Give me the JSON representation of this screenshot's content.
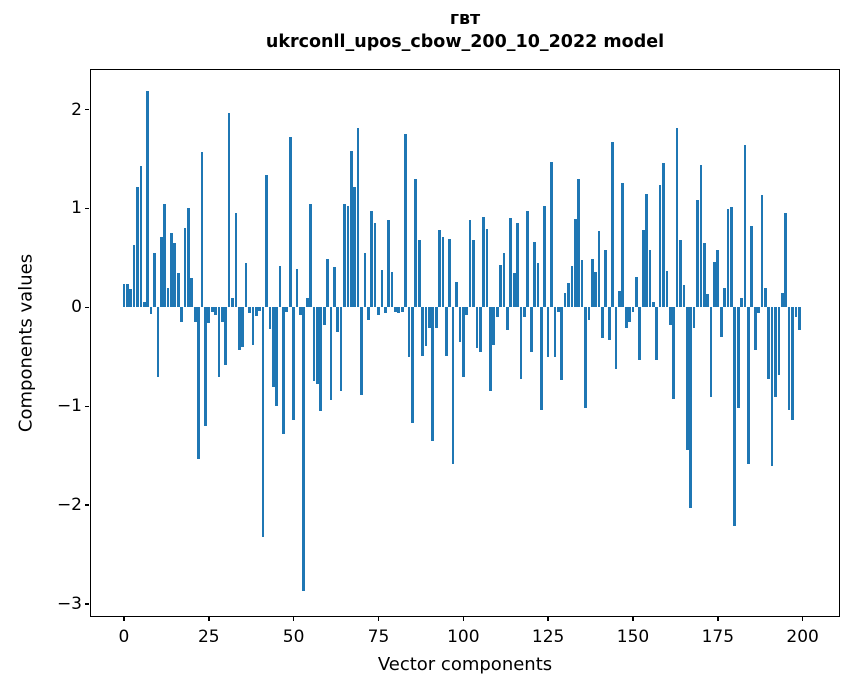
{
  "figure": {
    "title_line1": "гвт",
    "title_line2": "ukrconll_upos_cbow_200_10_2022 model"
  },
  "chart_data": {
    "type": "bar",
    "title": "гвт",
    "subtitle": "ukrconll_upos_cbow_200_10_2022 model",
    "xlabel": "Vector components",
    "ylabel": "Components values",
    "bar_color": "#1f77b4",
    "grid": false,
    "legend": "none",
    "xlim": [
      -10,
      211
    ],
    "ylim": [
      -3.13,
      2.41
    ],
    "x_ticks": [
      0,
      25,
      50,
      75,
      100,
      125,
      150,
      175,
      200
    ],
    "x_tick_labels": [
      "0",
      "25",
      "50",
      "75",
      "100",
      "125",
      "150",
      "175",
      "200"
    ],
    "y_ticks": [
      2,
      1,
      0,
      -1,
      -2,
      -3
    ],
    "y_tick_labels": [
      "2",
      "1",
      "0",
      "−1",
      "−2",
      "−3"
    ],
    "x_start": 0,
    "bar_width_units": 0.8,
    "values": [
      0.24,
      0.24,
      0.19,
      0.63,
      1.22,
      1.43,
      0.05,
      2.19,
      -0.07,
      0.55,
      -0.7,
      0.71,
      1.05,
      0.2,
      0.75,
      0.65,
      0.35,
      -0.15,
      0.8,
      1.0,
      0.3,
      -0.15,
      -1.53,
      1.57,
      -1.2,
      -0.16,
      -0.05,
      -0.08,
      -0.7,
      -0.15,
      -0.58,
      1.97,
      0.1,
      0.95,
      -0.43,
      -0.4,
      0.45,
      -0.06,
      -0.38,
      -0.09,
      -0.04,
      -2.32,
      1.34,
      -0.22,
      -0.8,
      -1.0,
      0.42,
      -1.28,
      -0.05,
      1.72,
      -1.14,
      0.39,
      -0.08,
      -2.87,
      0.1,
      1.05,
      -0.74,
      -0.77,
      -1.05,
      -0.18,
      0.49,
      -0.94,
      0.41,
      -0.25,
      -0.85,
      1.05,
      1.02,
      1.58,
      1.22,
      1.81,
      -0.89,
      0.55,
      -0.13,
      0.97,
      0.85,
      -0.08,
      0.38,
      -0.06,
      0.88,
      0.36,
      -0.05,
      -0.06,
      -0.05,
      1.75,
      -0.5,
      -1.17,
      1.3,
      0.68,
      -0.49,
      -0.39,
      -0.21,
      -1.35,
      -0.21,
      0.78,
      0.71,
      -0.49,
      0.69,
      -1.58,
      0.26,
      -0.35,
      -0.7,
      -0.08,
      0.88,
      0.68,
      -0.41,
      -0.45,
      0.91,
      0.79,
      -0.85,
      -0.38,
      -0.1,
      0.43,
      0.55,
      -0.23,
      0.9,
      0.35,
      0.85,
      -0.72,
      -0.1,
      0.97,
      -0.45,
      0.66,
      0.45,
      -1.04,
      1.03,
      -0.5,
      1.47,
      -0.5,
      -0.05,
      -0.73,
      0.15,
      0.25,
      0.42,
      0.89,
      1.3,
      0.48,
      -1.02,
      -0.13,
      0.49,
      0.36,
      0.77,
      -0.31,
      0.58,
      -0.33,
      1.67,
      -0.62,
      0.17,
      1.26,
      -0.21,
      -0.15,
      -0.05,
      0.31,
      -0.53,
      0.78,
      1.15,
      0.58,
      0.05,
      -0.53,
      1.24,
      1.46,
      0.37,
      -0.18,
      -0.93,
      1.81,
      0.68,
      0.23,
      -1.44,
      -2.03,
      -0.21,
      1.09,
      1.44,
      0.65,
      0.14,
      -0.91,
      0.46,
      0.58,
      -0.3,
      0.2,
      0.99,
      1.01,
      -2.21,
      -1.02,
      0.1,
      1.64,
      -1.58,
      0.82,
      -0.43,
      -0.06,
      1.14,
      0.2,
      -0.72,
      -1.6,
      -0.91,
      -0.68,
      0.15,
      0.95,
      -1.04,
      -1.14,
      -0.1,
      -0.23
    ]
  }
}
